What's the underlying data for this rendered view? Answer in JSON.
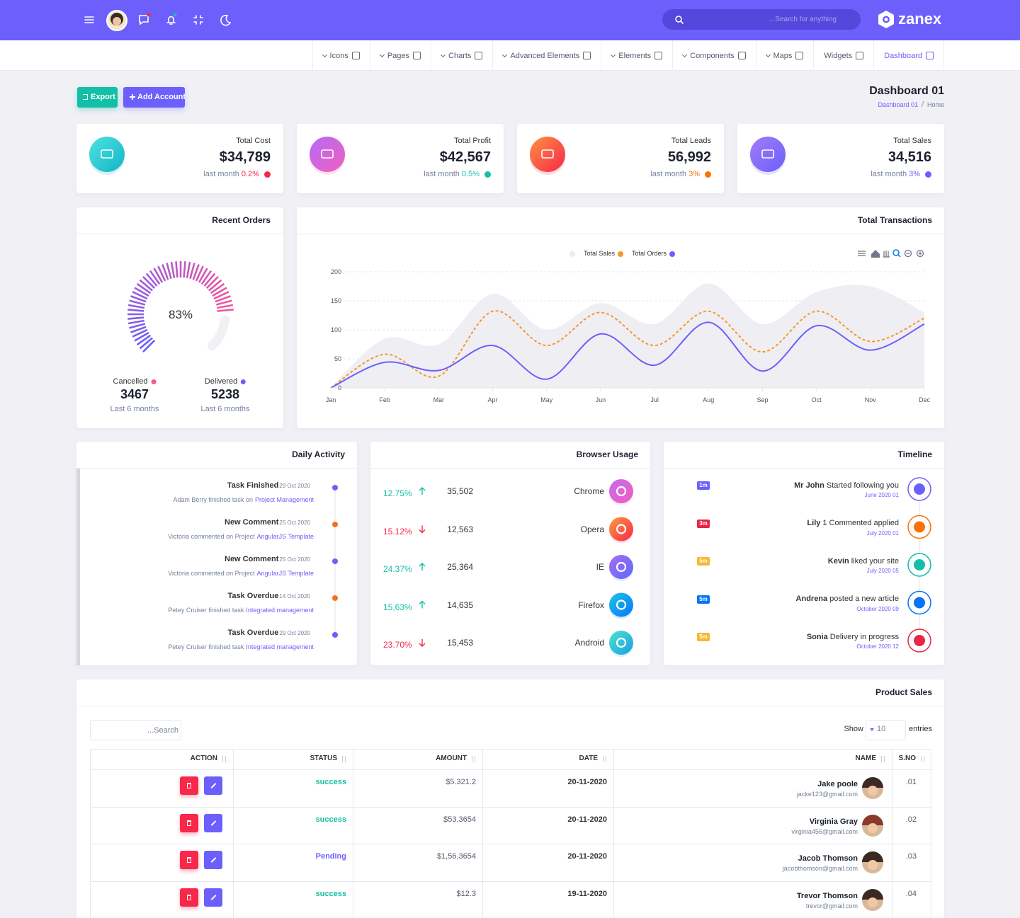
{
  "header": {
    "search_placeholder": "...Search for anything",
    "brand": "zanex"
  },
  "nav": [
    {
      "label": "Icons",
      "dropdown": true
    },
    {
      "label": "Pages",
      "dropdown": true
    },
    {
      "label": "Charts",
      "dropdown": true
    },
    {
      "label": "Advanced Elements",
      "dropdown": true
    },
    {
      "label": "Elements",
      "dropdown": true
    },
    {
      "label": "Components",
      "dropdown": true
    },
    {
      "label": "Maps",
      "dropdown": true
    },
    {
      "label": "Widgets",
      "dropdown": false
    },
    {
      "label": "Dashboard",
      "dropdown": false
    }
  ],
  "actions": {
    "export": "Export",
    "add_account": "Add Account"
  },
  "page_header": {
    "title": "Dashboard 01",
    "breadcrumb": [
      "Dashboard 01",
      "Home"
    ]
  },
  "stats": [
    {
      "label": "Total Cost",
      "value": "$34,789",
      "note": "last month",
      "change": "0.2%",
      "color": "#f7284a",
      "icon_colors": [
        "#4ee2e2",
        "#13b5c6"
      ]
    },
    {
      "label": "Total Profit",
      "value": "$42,567",
      "note": "last month",
      "change": "0.5%",
      "color": "#13bfa6",
      "icon_colors": [
        "#b36cf6",
        "#f05fbf"
      ]
    },
    {
      "label": "Total Leads",
      "value": "56,992",
      "note": "last month",
      "change": "3%",
      "color": "#fc7303",
      "icon_colors": [
        "#ff9040",
        "#f7284a"
      ]
    },
    {
      "label": "Total Sales",
      "value": "34,516",
      "note": "last month",
      "change": "3%",
      "color": "#6c5ffc",
      "icon_colors": [
        "#a07df6",
        "#6c5ffc"
      ]
    }
  ],
  "recent_orders": {
    "title": "Recent Orders",
    "gauge": {
      "value": 83,
      "label": "83%"
    },
    "summary": [
      {
        "label": "Cancelled",
        "value": 3467,
        "note": "Last 6 months",
        "color": "#f5579a"
      },
      {
        "label": "Delivered",
        "value": 5238,
        "note": "Last 6 months",
        "color": "#6c5ffc"
      }
    ]
  },
  "transactions": {
    "title": "Total Transactions",
    "type": "line",
    "categories": [
      "Jan",
      "Feb",
      "Mar",
      "Apr",
      "May",
      "Jun",
      "Jul",
      "Aug",
      "Sep",
      "Oct",
      "Nov",
      "Dec"
    ],
    "series": [
      {
        "color": "#ececf1",
        "fill": true,
        "values": [
          0,
          85,
          75,
          162,
          100,
          146,
          110,
          180,
          110,
          165,
          175,
          130
        ]
      },
      {
        "name": "Total Sales",
        "color": "#f7962c",
        "dashed": true,
        "values": [
          0,
          58,
          20,
          132,
          73,
          130,
          73,
          132,
          62,
          132,
          80,
          120
        ]
      },
      {
        "name": "Total Orders",
        "color": "#6c5ffc",
        "values": [
          0,
          44,
          30,
          73,
          15,
          93,
          39,
          113,
          29,
          107,
          65,
          110
        ]
      }
    ],
    "ylim": [
      0,
      200
    ],
    "yticks": [
      0,
      50,
      100,
      150,
      200
    ],
    "grid": true
  },
  "daily_activity": {
    "title": "Daily Activity",
    "items": [
      {
        "title": "Task Finished",
        "date": "29 Oct 2020",
        "text": "Adam Berry finished task on",
        "link": "Project Management",
        "color": "#6c5ffc"
      },
      {
        "title": "New Comment",
        "date": "25 Oct 2020",
        "text": "Victoria commented on Project",
        "link": "AngularJS Template",
        "color": "#f46f21"
      },
      {
        "title": "New Comment",
        "date": "25 Oct 2020",
        "text": "Victoria commented on Project",
        "link": "AngularJS Template",
        "color": "#6c5ffc"
      },
      {
        "title": "Task Overdue",
        "date": "14 Oct 2020",
        "text": "Petey Cruiser finished task",
        "link": "Integrated management",
        "color": "#f46f21"
      },
      {
        "title": "Task Overdue",
        "date": "29 Oct 2020",
        "text": "Petey Cruiser finished task",
        "link": "Integrated management",
        "color": "#6c5ffc"
      }
    ]
  },
  "browser_usage": {
    "title": "Browser Usage",
    "rows": [
      {
        "change": "12.75%",
        "trend": "up",
        "count": "35,502",
        "name": "Chrome",
        "icon_colors": [
          "#c56cf0",
          "#f25dbf"
        ]
      },
      {
        "change": "15.12%",
        "trend": "down",
        "count": "12,563",
        "name": "Opera",
        "icon_colors": [
          "#ff9a3c",
          "#f7284a"
        ]
      },
      {
        "change": "24.37%",
        "trend": "up",
        "count": "25,364",
        "name": "IE",
        "icon_colors": [
          "#a66cf8",
          "#5b6cf6"
        ]
      },
      {
        "change": "15,63%",
        "trend": "up",
        "count": "14,635",
        "name": "Firefox",
        "icon_colors": [
          "#1cc7e8",
          "#0774f8"
        ]
      },
      {
        "change": "23.70%",
        "trend": "down",
        "count": "15,453",
        "name": "Android",
        "icon_colors": [
          "#4ee2d0",
          "#1a9fe0"
        ]
      }
    ]
  },
  "timeline": {
    "title": "Timeline",
    "items": [
      {
        "badge": "1m",
        "name": "Mr John",
        "text": "Started following you",
        "date": "June 2020 01",
        "badge_color": "#6c5ffc",
        "icon_color": "#6c5ffc"
      },
      {
        "badge": "3m",
        "name": "Lily",
        "text": "1 Commented applied",
        "date": "July 2020 01",
        "badge_color": "#e82646",
        "icon_color": "#fc7303"
      },
      {
        "badge": "5m",
        "name": "Kevin",
        "text": "liked your site",
        "date": "July 2020 05",
        "badge_color": "#f7b731",
        "icon_color": "#13bfa6"
      },
      {
        "badge": "5m",
        "name": "Andrena",
        "text": "posted a new article",
        "date": "October 2020 09",
        "badge_color": "#0774f8",
        "icon_color": "#0774f8"
      },
      {
        "badge": "5m",
        "name": "Sonia",
        "text": "Delivery in progress",
        "date": "October 2020 12",
        "badge_color": "#f7b731",
        "icon_color": "#e82646"
      }
    ]
  },
  "product_sales": {
    "title": "Product Sales",
    "search_placeholder": "...Search",
    "show": "Show",
    "page_size": "10",
    "entries": "entries",
    "columns": [
      "ACTION",
      "STATUS",
      "AMOUNT",
      "DATE",
      "NAME",
      "S.NO"
    ],
    "rows": [
      {
        "status": "success",
        "status_color": "#13bfa6",
        "amount": "$5.321.2",
        "date": "20-11-2020",
        "name": "Jake poole",
        "email": "jacke123@gmail.com",
        "sno": ".01"
      },
      {
        "status": "success",
        "status_color": "#13bfa6",
        "amount": "$53,3654",
        "date": "20-11-2020",
        "name": "Virginia Gray",
        "email": "virginia456@gmail.com",
        "sno": ".02"
      },
      {
        "status": "Pending",
        "status_color": "#6c5ffc",
        "amount": "$1,56,3654",
        "date": "20-11-2020",
        "name": "Jacob Thomson",
        "email": "jacobthomson@gmail.com",
        "sno": ".03"
      },
      {
        "status": "success",
        "status_color": "#13bfa6",
        "amount": "$12.3",
        "date": "19-11-2020",
        "name": "Trevor Thomson",
        "email": "trevor@gmail.com",
        "sno": ".04"
      }
    ]
  }
}
